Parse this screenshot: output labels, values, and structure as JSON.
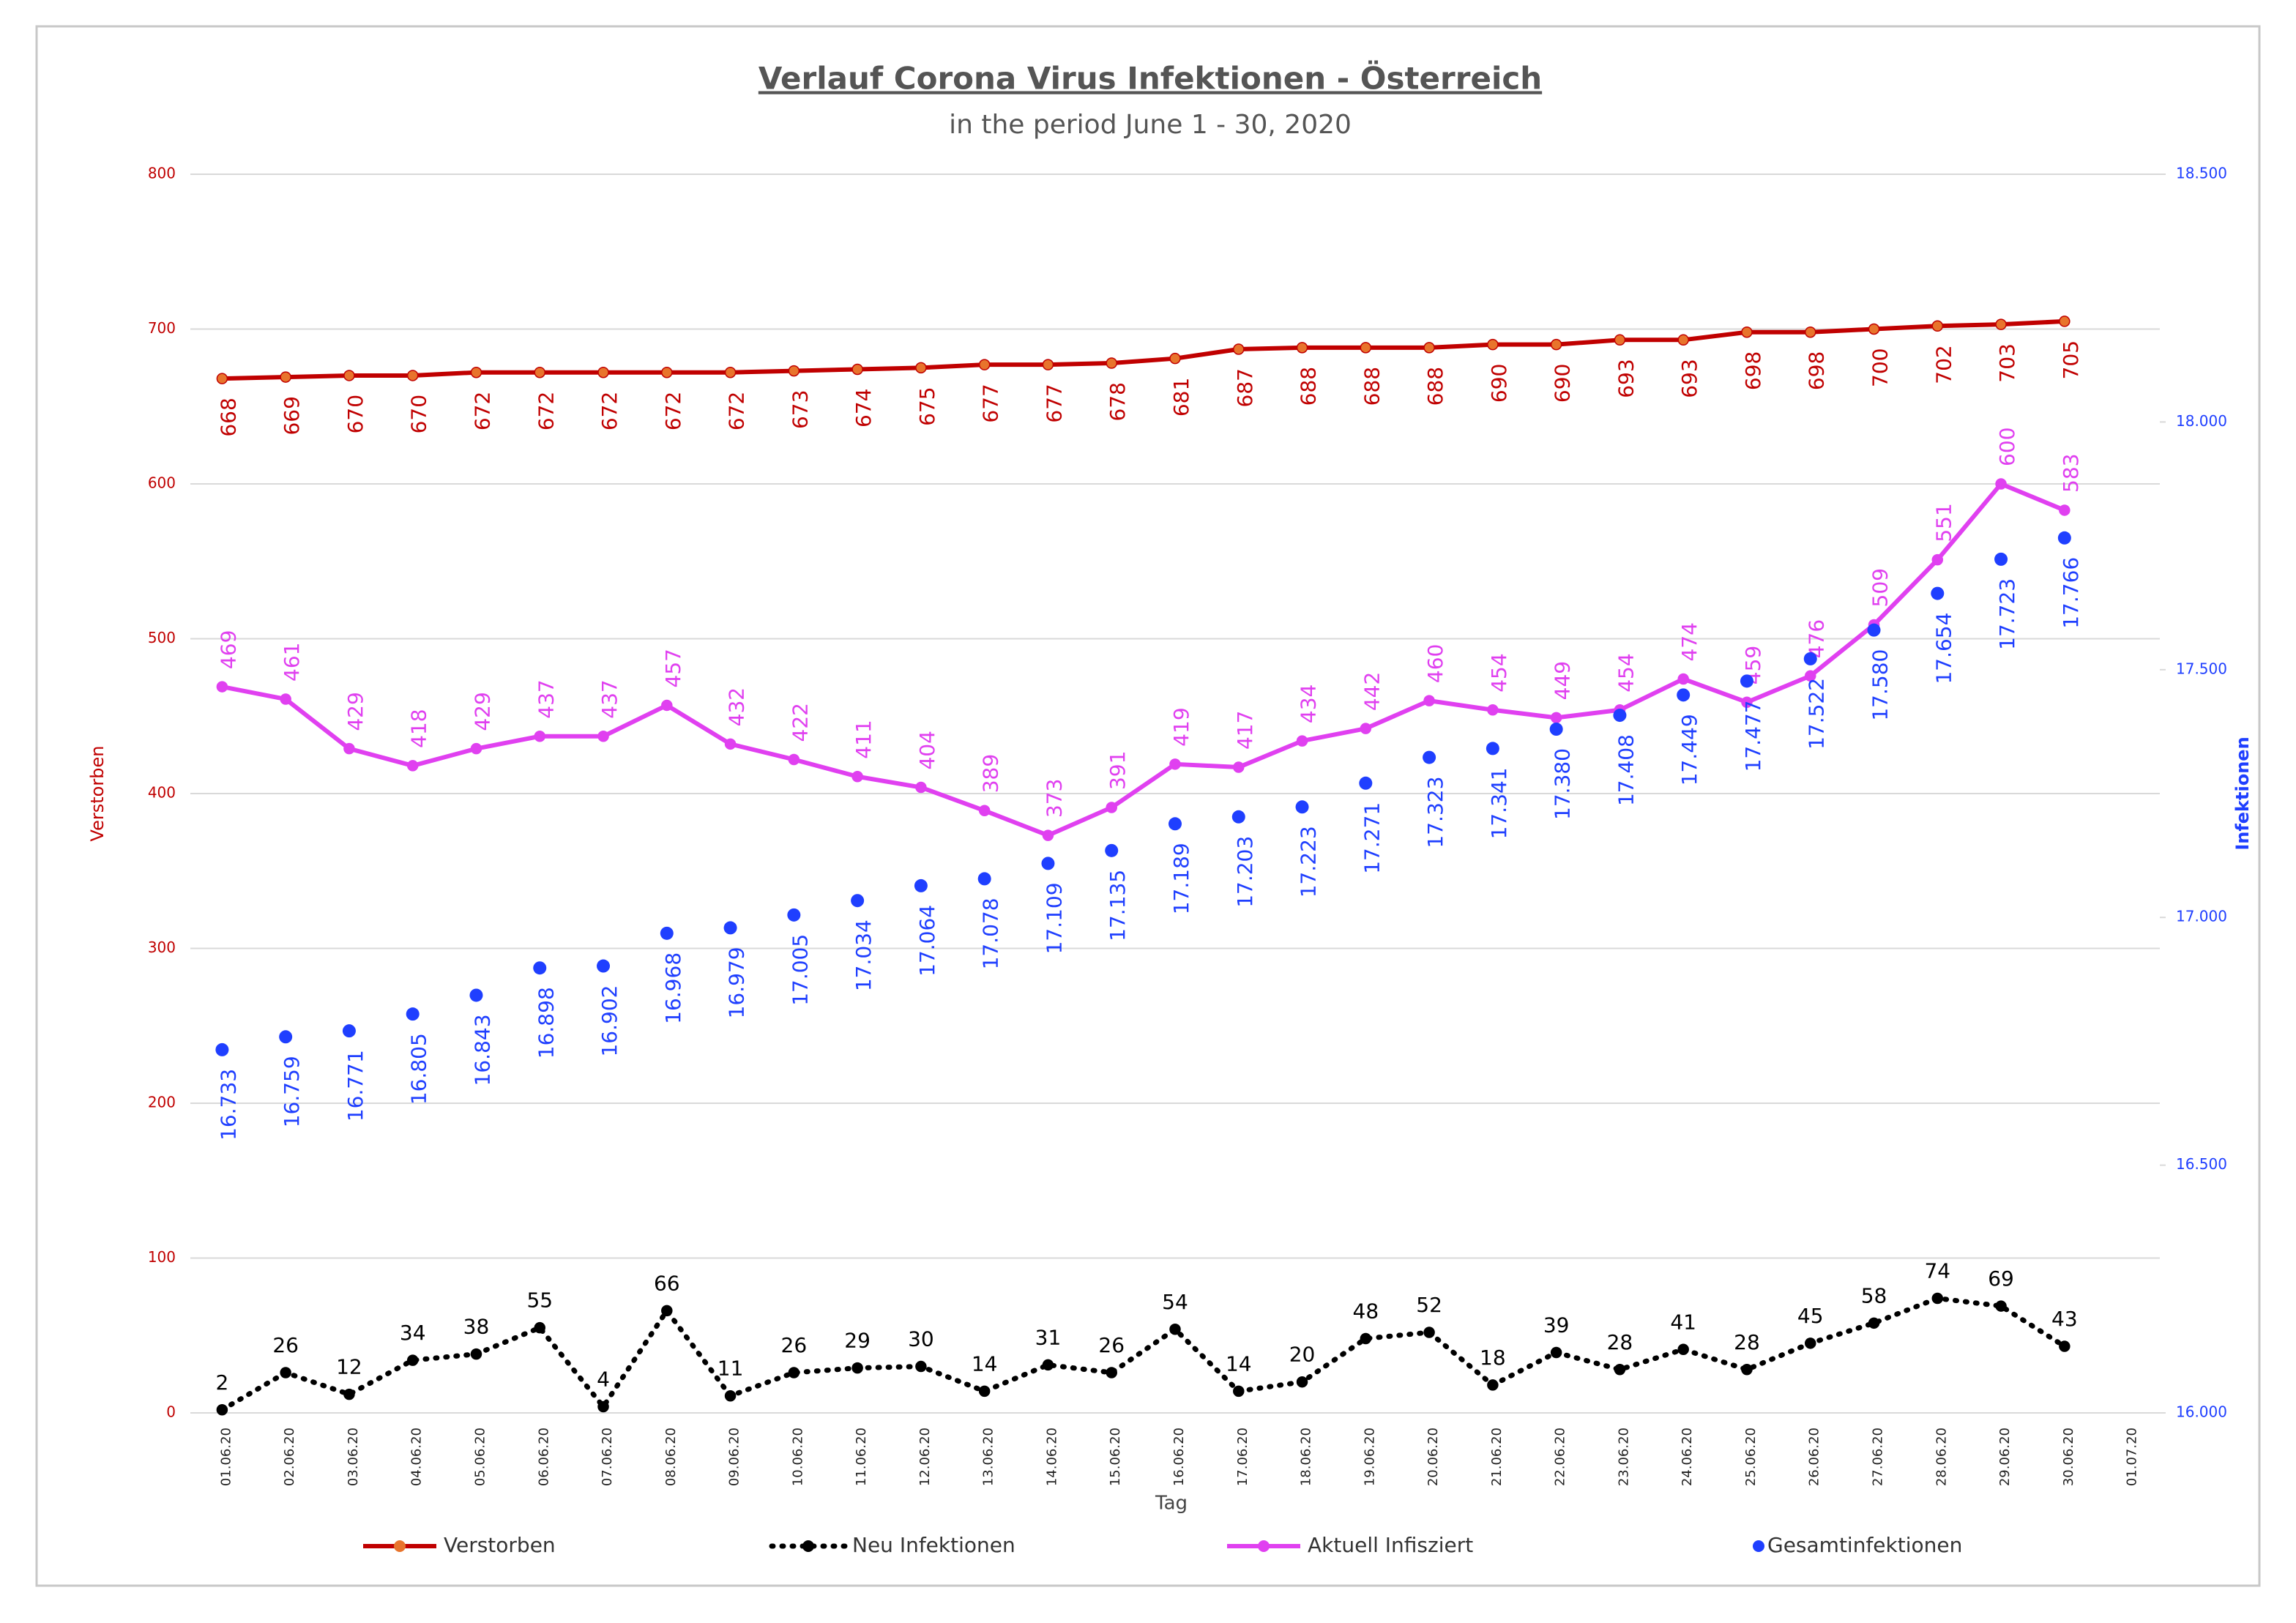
{
  "chart_data": {
    "type": "line",
    "title": "Verlauf Corona Virus Infektionen - Österreich",
    "subtitle": "in the period June 1 - 30, 2020",
    "x_label": "Tag",
    "y_label": "Verstorben",
    "y2_label": "Infektionen",
    "categories": [
      "01.06.20",
      "02.06.20",
      "03.06.20",
      "04.06.20",
      "05.06.20",
      "06.06.20",
      "07.06.20",
      "08.06.20",
      "09.06.20",
      "10.06.20",
      "11.06.20",
      "12.06.20",
      "13.06.20",
      "14.06.20",
      "15.06.20",
      "16.06.20",
      "17.06.20",
      "18.06.20",
      "19.06.20",
      "20.06.20",
      "21.06.20",
      "22.06.20",
      "23.06.20",
      "24.06.20",
      "25.06.20",
      "26.06.20",
      "27.06.20",
      "28.06.20",
      "29.06.20",
      "30.06.20",
      "01.07.20"
    ],
    "ylim": [
      0,
      800
    ],
    "yticks": [
      0,
      100,
      200,
      300,
      400,
      500,
      600,
      700,
      800
    ],
    "y2lim": [
      16000,
      18500
    ],
    "y2ticks": [
      {
        "value": 16000,
        "label": "16.000"
      },
      {
        "value": 16500,
        "label": "16.500"
      },
      {
        "value": 17000,
        "label": "17.000"
      },
      {
        "value": 17500,
        "label": "17.500"
      },
      {
        "value": 18000,
        "label": "18.000"
      },
      {
        "value": 18500,
        "label": "18.500"
      }
    ],
    "grid": true,
    "legend": "bottom",
    "series": [
      {
        "name": "Verstorben",
        "color": "#c00000",
        "marker_color": "#e8742c",
        "line_style": "solid",
        "values": [
          668,
          669,
          670,
          670,
          672,
          672,
          672,
          672,
          672,
          673,
          674,
          675,
          677,
          677,
          678,
          681,
          687,
          688,
          688,
          688,
          690,
          690,
          693,
          693,
          698,
          698,
          700,
          702,
          703,
          705,
          null
        ]
      },
      {
        "name": "Neu Infektionen",
        "color": "#000000",
        "marker_color": "#000000",
        "line_style": "dotted",
        "values": [
          2,
          26,
          12,
          34,
          38,
          55,
          4,
          66,
          11,
          26,
          29,
          30,
          14,
          31,
          26,
          54,
          14,
          20,
          48,
          52,
          18,
          39,
          28,
          41,
          28,
          45,
          58,
          74,
          69,
          43,
          null
        ]
      },
      {
        "name": "Aktuell Infisziert",
        "color": "#e040f0",
        "marker_color": "#e040f0",
        "line_style": "solid",
        "values": [
          469,
          461,
          429,
          418,
          429,
          437,
          437,
          457,
          432,
          422,
          411,
          404,
          389,
          373,
          391,
          419,
          417,
          434,
          442,
          460,
          454,
          449,
          454,
          474,
          459,
          476,
          509,
          551,
          600,
          583,
          null
        ]
      },
      {
        "name": "Gesamtinfektionen",
        "color": "#1f3fff",
        "marker_color": "#1f3fff",
        "line_style": "none",
        "axis": "y2",
        "values": [
          16733,
          16759,
          16771,
          16805,
          16843,
          16898,
          16902,
          16968,
          16979,
          17005,
          17034,
          17064,
          17078,
          17109,
          17135,
          17189,
          17203,
          17223,
          17271,
          17323,
          17341,
          17380,
          17408,
          17449,
          17477,
          17522,
          17580,
          17654,
          17723,
          17766,
          null
        ],
        "value_labels": [
          "16.733",
          "16.759",
          "16.771",
          "16.805",
          "16.843",
          "16.898",
          "16.902",
          "16.968",
          "16.979",
          "17.005",
          "17.034",
          "17.064",
          "17.078",
          "17.109",
          "17.135",
          "17.189",
          "17.203",
          "17.223",
          "17.271",
          "17.323",
          "17.341",
          "17.380",
          "17.408",
          "17.449",
          "17.477",
          "17.522",
          "17.580",
          "17.654",
          "17.723",
          "17.766",
          null
        ]
      }
    ]
  }
}
